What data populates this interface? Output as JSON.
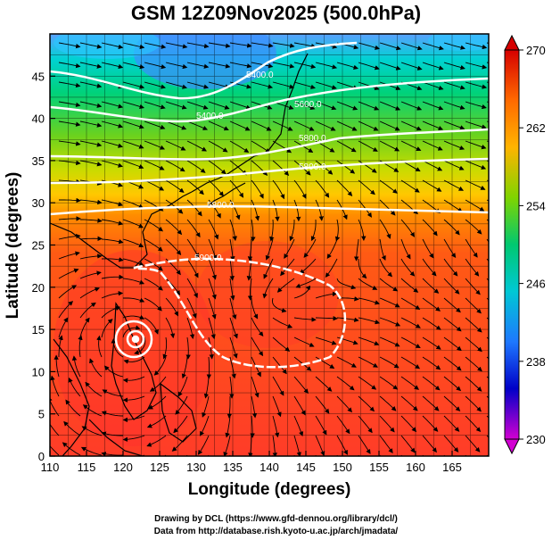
{
  "title": "GSM 12Z09Nov2025 (500.0hPa)",
  "xlabel": "Longitude (degrees)",
  "ylabel": "Latitude  (degrees)",
  "x_ticks": [
    "110",
    "115",
    "120",
    "125",
    "130",
    "135",
    "140",
    "145",
    "150",
    "155",
    "160",
    "165"
  ],
  "y_ticks": [
    "0",
    "5",
    "10",
    "15",
    "20",
    "25",
    "30",
    "35",
    "40",
    "45"
  ],
  "colorbar": {
    "labels": [
      "270",
      "262",
      "254",
      "246",
      "238",
      "230"
    ],
    "colors": [
      "#d60000",
      "#ff6a00",
      "#ffb400",
      "#7fd400",
      "#00c870",
      "#00c8d4",
      "#1e78ff",
      "#0000c8",
      "#d200d2"
    ]
  },
  "contour_labels": [
    "5400.0",
    "5400.0",
    "5600.0",
    "5800.0",
    "5800.0",
    "5800.0",
    "5900.0"
  ],
  "credits": {
    "line1": "Drawing by DCL (https://www.gfd-dennou.org/library/dcl/)",
    "line2": "Data from http://database.rish.kyoto-u.ac.jp/arch/jmadata/"
  },
  "map_data": {
    "lon_range": [
      110,
      170
    ],
    "lat_range": [
      0,
      50
    ],
    "colorbar_range": [
      230,
      270
    ],
    "field": "temperature (shaded), geopotential height (white contours), wind streamlines"
  }
}
